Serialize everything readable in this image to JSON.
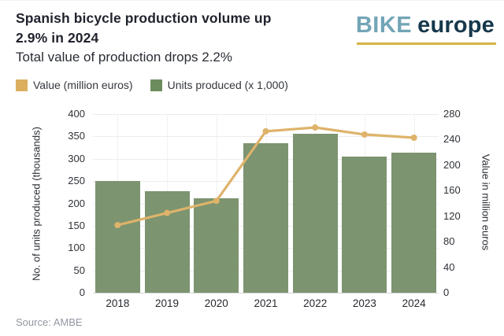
{
  "header": {
    "title_line1": "Spanish bicycle production volume up",
    "title_line2": "2.9% in 2024",
    "subtitle": "Total value of production drops 2.2%",
    "logo": {
      "part1": "BIKE",
      "part2": "europe"
    }
  },
  "legend": [
    {
      "label": "Value (million euros)",
      "color": "#dcae60"
    },
    {
      "label": "Units produced (x 1,000)",
      "color": "#6d8c5d"
    }
  ],
  "chart_data": {
    "type": "bar",
    "categories": [
      "2018",
      "2019",
      "2020",
      "2021",
      "2022",
      "2023",
      "2024"
    ],
    "series": [
      {
        "name": "Units produced (x 1,000)",
        "type": "bar",
        "axis": "left",
        "color": "#7c9470",
        "values": [
          250,
          227,
          212,
          335,
          356,
          304,
          313
        ]
      },
      {
        "name": "Value (million euros)",
        "type": "line",
        "axis": "right",
        "color": "#deb36a",
        "values": [
          106,
          125,
          144,
          253,
          259,
          248,
          243
        ]
      }
    ],
    "left_axis": {
      "label": "No. of units produced (thousands)",
      "min": 0,
      "max": 400,
      "step": 50
    },
    "right_axis": {
      "label": "Value in million euros",
      "min": 0,
      "max": 280,
      "step": 40
    },
    "grid": true,
    "legend_position": "top-left",
    "title": "Spanish bicycle production volume up 2.9% in 2024"
  },
  "source": "Source: AMBE",
  "colors": {
    "bar_green": "#7c9470",
    "line_tan": "#deb36a",
    "logo_teal": "#72a5b7",
    "logo_navy": "#16384c",
    "logo_gold": "#d8b347",
    "grid_gray": "#ececec"
  }
}
